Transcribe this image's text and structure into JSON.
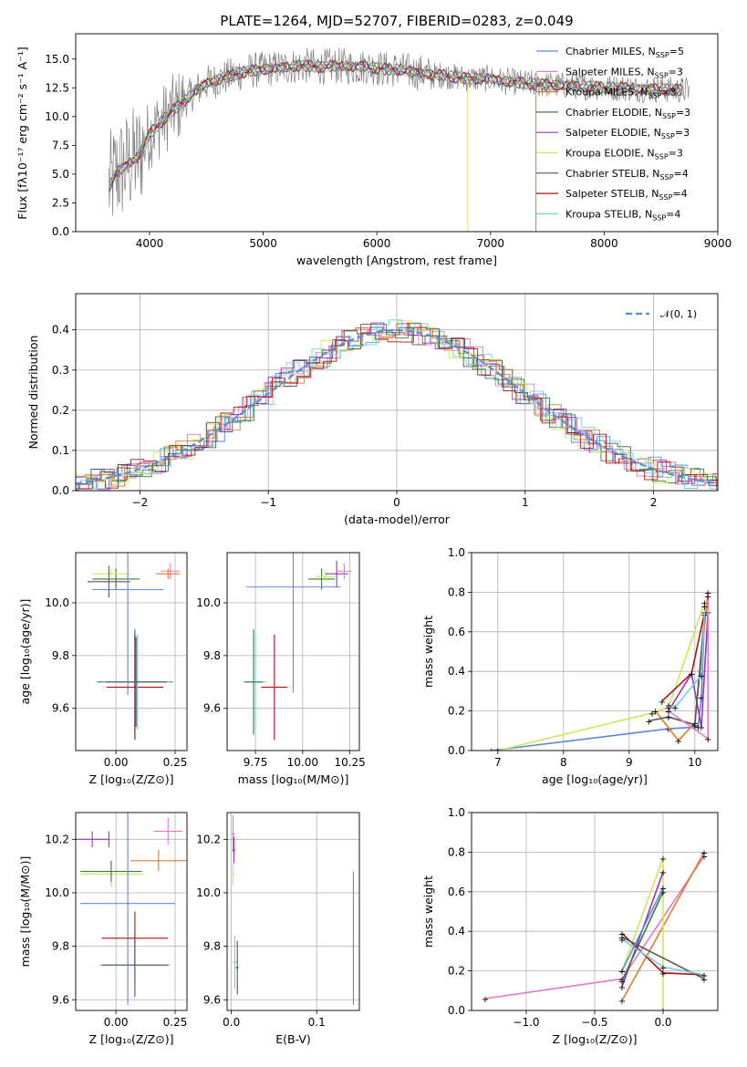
{
  "title": "PLATE=1264, MJD=52707, FIBERID=0283, z=0.049",
  "colors": {
    "chabrier_miles": "#5b8bd8",
    "salpeter_miles": "#e377c2",
    "kroupa_miles": "#e07b28",
    "chabrier_elodie": "#3c7a3c",
    "salpeter_elodie": "#9b30c0",
    "kroupa_elodie": "#cde85a",
    "chabrier_stelib": "#555555",
    "salpeter_stelib": "#b01010",
    "kroupa_stelib": "#72d0e0",
    "data": "#808080",
    "gauss": "#5b8bd8",
    "grid": "#b0b0b0"
  },
  "chart_data": [
    {
      "type": "line",
      "title": "PLATE=1264, MJD=52707, FIBERID=0283, z=0.049",
      "xlabel": "wavelength [Angstrom, rest frame]",
      "ylabel_html": "Flux [fλ10⁻¹⁷ erg cm⁻² s⁻¹ A⁻¹]",
      "xlim": [
        3350,
        9000
      ],
      "ylim": [
        0,
        17.2
      ],
      "xticks": [
        "4000",
        "5000",
        "6000",
        "7000",
        "8000",
        "9000"
      ],
      "yticks": [
        "0.0",
        "2.5",
        "5.0",
        "7.5",
        "10.0",
        "12.5",
        "15.0"
      ],
      "grid": false,
      "legend_position": "right",
      "series": [
        {
          "name": "Chabrier MILES, N",
          "sub": "SSP",
          "suffix": "=5"
        },
        {
          "name": "Salpeter MILES, N",
          "sub": "SSP",
          "suffix": "=3"
        },
        {
          "name": "Kroupa MILES, N",
          "sub": "SSP",
          "suffix": "=3"
        },
        {
          "name": "Chabrier ELODIE, N",
          "sub": "SSP",
          "suffix": "=3"
        },
        {
          "name": "Salpeter ELODIE, N",
          "sub": "SSP",
          "suffix": "=3"
        },
        {
          "name": "Kroupa ELODIE, N",
          "sub": "SSP",
          "suffix": "=3"
        },
        {
          "name": "Chabrier STELIB, N",
          "sub": "SSP",
          "suffix": "=4"
        },
        {
          "name": "Salpeter STELIB, N",
          "sub": "SSP",
          "suffix": "=4"
        },
        {
          "name": "Kroupa STELIB, N",
          "sub": "SSP",
          "suffix": "=4"
        }
      ],
      "model_x": [
        3650,
        3700,
        3800,
        3900,
        4000,
        4100,
        4200,
        4300,
        4400,
        4500,
        4600,
        4700,
        4800,
        4900,
        5000,
        5100,
        5200,
        5300,
        5400,
        5500,
        5600,
        5700,
        5800,
        5900,
        6000,
        6100,
        6200,
        6300,
        6400,
        6500,
        6600,
        6700,
        6800,
        6900,
        7000,
        7100,
        7200,
        7300,
        7400,
        7500,
        7600,
        7700,
        7800,
        7900,
        8000,
        8100,
        8200,
        8300,
        8400,
        8500,
        8600,
        8700
      ],
      "model_y": [
        4.0,
        5.0,
        5.8,
        6.5,
        8.5,
        9.5,
        10.5,
        11.3,
        12.2,
        12.9,
        13.2,
        13.5,
        13.8,
        14.0,
        14.1,
        14.2,
        14.3,
        14.4,
        14.4,
        14.3,
        14.4,
        14.4,
        14.3,
        14.4,
        14.2,
        14.1,
        14.1,
        13.9,
        13.8,
        13.6,
        13.6,
        13.4,
        13.3,
        13.3,
        13.3,
        13.1,
        13.0,
        12.9,
        12.8,
        12.8,
        12.7,
        12.7,
        12.6,
        12.6,
        12.5,
        12.5,
        12.5,
        12.4,
        12.4,
        12.4,
        12.3,
        12.3
      ]
    },
    {
      "type": "line",
      "xlabel": "(data-model)/error",
      "ylabel": "Normed distribution",
      "xlim": [
        -2.5,
        2.5
      ],
      "ylim": [
        0,
        0.49
      ],
      "xticks": [
        "−2",
        "−1",
        "0",
        "1",
        "2"
      ],
      "yticks": [
        "0.0",
        "0.1",
        "0.2",
        "0.3",
        "0.4"
      ],
      "grid": true,
      "legend": "𝒩(0, 1)",
      "legend_position": "top-right",
      "bin_width": 0.1
    },
    {
      "type": "scatter",
      "xlabel": "Z [log₁₀(Z/Z⊙)]",
      "ylabel": "age  [log₁₀(age/yr)]",
      "xlim": [
        -0.17,
        0.3
      ],
      "ylim": [
        9.44,
        10.19
      ],
      "xticks": [
        "0.00",
        "0.25"
      ],
      "yticks": [
        "9.6",
        "9.8",
        "10.0"
      ],
      "grid": true
    },
    {
      "type": "scatter",
      "xlabel": "mass [log₁₀(M/M⊙)]",
      "xlim": [
        9.6,
        10.3
      ],
      "ylim": [
        9.44,
        10.19
      ],
      "xticks": [
        "9.75",
        "10.00",
        "10.25"
      ],
      "yticks": [
        "9.6",
        "9.8",
        "10.0"
      ],
      "grid": true
    },
    {
      "type": "line",
      "xlabel": "age  [log₁₀(age/yr)]",
      "ylabel": "mass weight",
      "xlim": [
        6.6,
        10.35
      ],
      "ylim": [
        0,
        1.0
      ],
      "xticks": [
        "7",
        "8",
        "9",
        "10"
      ],
      "yticks": [
        "0.0",
        "0.2",
        "0.4",
        "0.6",
        "0.8",
        "1.0"
      ],
      "grid": true
    },
    {
      "type": "scatter",
      "xlabel": "Z [log₁₀(Z/Z⊙)]",
      "ylabel": "mass [log₁₀(M/M⊙)]",
      "xlim": [
        -0.17,
        0.3
      ],
      "ylim": [
        9.56,
        10.3
      ],
      "xticks": [
        "0.00",
        "0.25"
      ],
      "yticks": [
        "9.6",
        "9.8",
        "10.0",
        "10.2"
      ],
      "grid": true
    },
    {
      "type": "scatter",
      "xlabel": "E(B-V)",
      "xlim": [
        -0.005,
        0.15
      ],
      "ylim": [
        9.56,
        10.3
      ],
      "xticks": [
        "0.0",
        "0.1"
      ],
      "yticks": [
        "9.6",
        "9.8",
        "10.0",
        "10.2"
      ],
      "grid": true
    },
    {
      "type": "line",
      "xlabel": "Z [log₁₀(Z/Z⊙)]",
      "ylabel": "mass weight",
      "xlim": [
        -1.4,
        0.4
      ],
      "ylim": [
        0,
        1.0
      ],
      "xticks": [
        "−1.0",
        "−0.5",
        "0.0"
      ],
      "yticks": [
        "0.0",
        "0.2",
        "0.4",
        "0.6",
        "0.8",
        "1.0"
      ],
      "grid": true
    }
  ]
}
